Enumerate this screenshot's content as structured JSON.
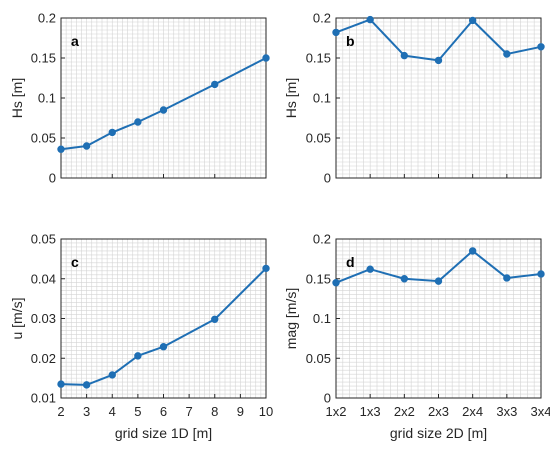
{
  "chart_data": [
    {
      "type": "line",
      "panel_label": "a",
      "xlabel": "",
      "ylabel": "Hs [m]",
      "xlim": [
        2,
        10
      ],
      "ylim": [
        0,
        0.2
      ],
      "xticks": [
        2,
        4,
        6,
        8,
        10
      ],
      "yticks": [
        0,
        0.05,
        0.1,
        0.15,
        0.2
      ],
      "ytick_labels": [
        "0",
        "0.05",
        "0.1",
        "0.15",
        "0.2"
      ],
      "x": [
        2,
        3,
        4,
        5,
        6,
        8,
        10
      ],
      "series": [
        {
          "values": [
            0.036,
            0.04,
            0.057,
            0.07,
            0.085,
            0.117,
            0.15
          ]
        }
      ],
      "grid": true,
      "minor_grid": true
    },
    {
      "type": "line",
      "panel_label": "b",
      "xlabel": "",
      "ylabel": "Hs [m]",
      "categories": [
        "1x2",
        "1x3",
        "2x2",
        "2x3",
        "2x4",
        "3x3",
        "3x4"
      ],
      "ylim": [
        0,
        0.2
      ],
      "yticks": [
        0,
        0.05,
        0.1,
        0.15,
        0.2
      ],
      "ytick_labels": [
        "0",
        "0.05",
        "0.1",
        "0.15",
        "0.2"
      ],
      "series": [
        {
          "values": [
            0.182,
            0.198,
            0.153,
            0.147,
            0.197,
            0.155,
            0.164
          ]
        }
      ],
      "grid": true,
      "minor_grid": true
    },
    {
      "type": "line",
      "panel_label": "c",
      "xlabel": "grid size 1D [m]",
      "ylabel": "u [m/s]",
      "xlim": [
        2,
        10
      ],
      "ylim": [
        0.01,
        0.05
      ],
      "xticks": [
        2,
        3,
        4,
        5,
        6,
        7,
        8,
        9,
        10
      ],
      "xtick_labels": [
        "2",
        "3",
        "4",
        "5",
        "6",
        "7",
        "8",
        "9",
        "10"
      ],
      "yticks": [
        0.01,
        0.02,
        0.03,
        0.04,
        0.05
      ],
      "ytick_labels": [
        "0.01",
        "0.02",
        "0.03",
        "0.04",
        "0.05"
      ],
      "x": [
        2,
        3,
        4,
        5,
        6,
        8,
        10
      ],
      "series": [
        {
          "values": [
            0.0135,
            0.0133,
            0.0158,
            0.0206,
            0.0229,
            0.0298,
            0.0426
          ]
        }
      ],
      "grid": true,
      "minor_grid": true
    },
    {
      "type": "line",
      "panel_label": "d",
      "xlabel": "grid size 2D [m]",
      "ylabel": "mag [m/s]",
      "categories": [
        "1x2",
        "1x3",
        "2x2",
        "2x3",
        "2x4",
        "3x3",
        "3x4"
      ],
      "ylim": [
        0,
        0.2
      ],
      "yticks": [
        0,
        0.05,
        0.1,
        0.15,
        0.2
      ],
      "ytick_labels": [
        "0",
        "0.05",
        "0.1",
        "0.15",
        "0.2"
      ],
      "series": [
        {
          "values": [
            0.145,
            0.162,
            0.15,
            0.147,
            0.185,
            0.151,
            0.156
          ]
        }
      ],
      "grid": true,
      "minor_grid": true
    }
  ],
  "colors": {
    "line": "#1f6fb4",
    "grid": "#d4d4d4",
    "axis": "#262626"
  }
}
